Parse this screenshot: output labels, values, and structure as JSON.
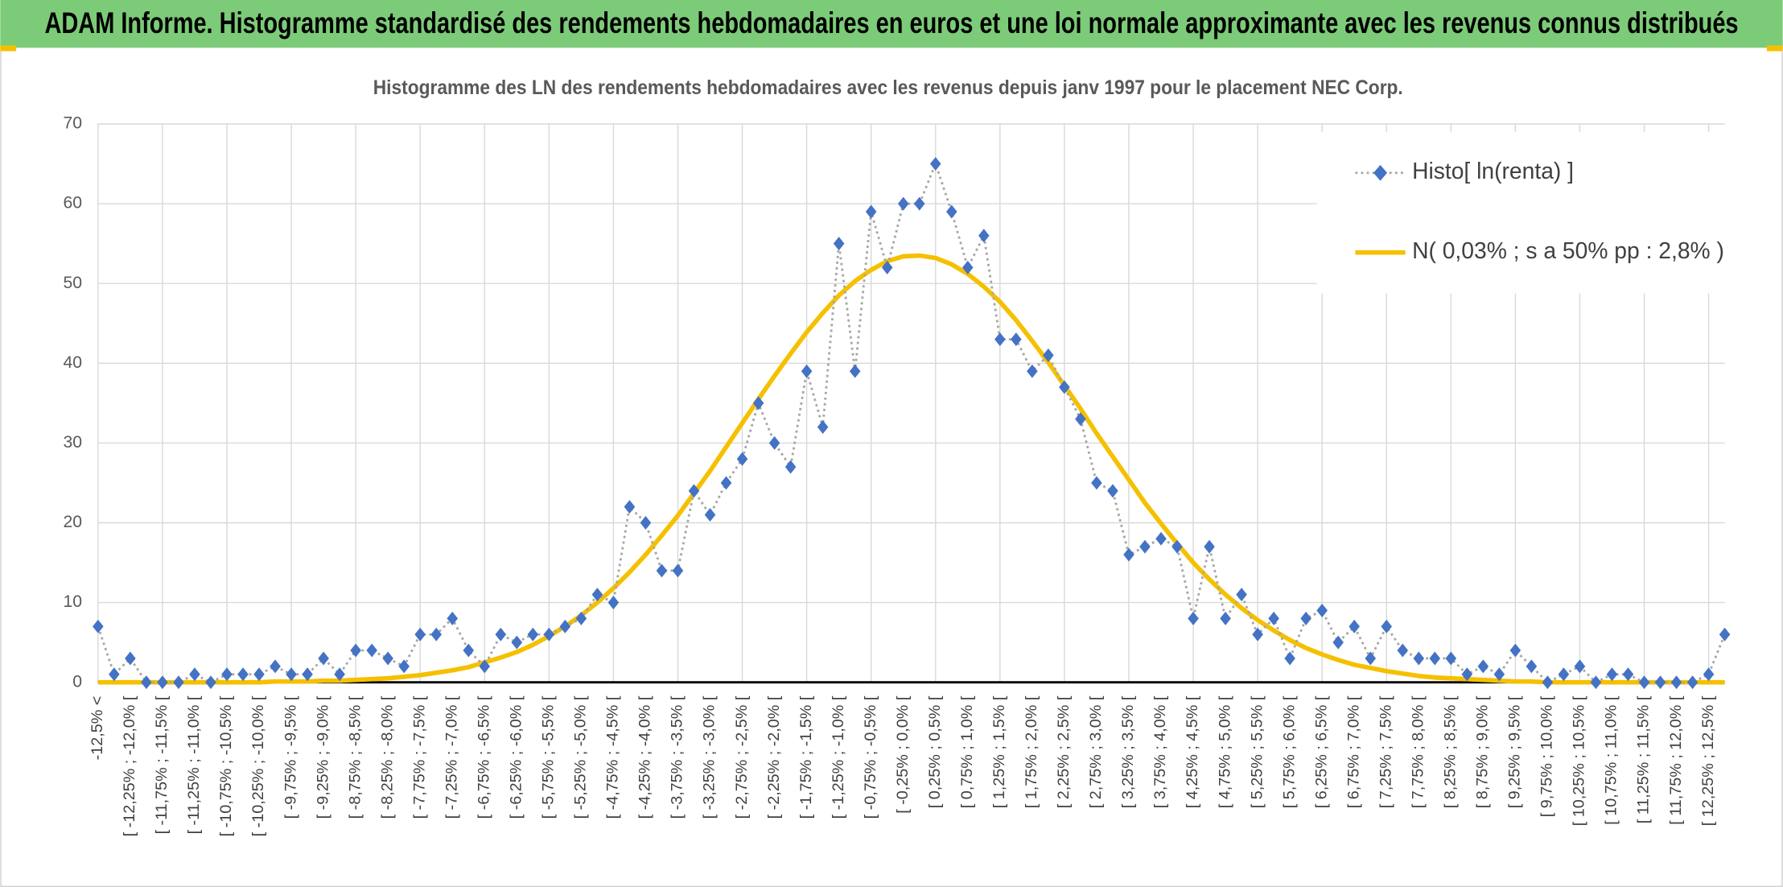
{
  "header": {
    "title": "ADAM Informe. Histogramme standardisé des rendements hebdomadaires en euros et une loi normale approximante avec les revenus connus distribués"
  },
  "chart_data": {
    "type": "line",
    "title": "Histogramme des LN des rendements hebdomadaires avec les revenus depuis janv 1997 pour le placement NEC Corp.",
    "categories": [
      "-12,5% <",
      null,
      "[ -12,25% ; -12,0% [",
      null,
      "[ -11,75% ; -11,5% [",
      null,
      "[ -11,25% ; -11,0% [",
      null,
      "[ -10,75% ; -10,5% [",
      null,
      "[ -10,25% ; -10,0% [",
      null,
      "[ -9,75% ; -9,5% [",
      null,
      "[ -9,25% ; -9,0% [",
      null,
      "[ -8,75% ; -8,5% [",
      null,
      "[ -8,25% ; -8,0% [",
      null,
      "[ -7,75% ; -7,5% [",
      null,
      "[ -7,25% ; -7,0% [",
      null,
      "[ -6,75% ; -6,5% [",
      null,
      "[ -6,25% ; -6,0% [",
      null,
      "[ -5,75% ; -5,5% [",
      null,
      "[ -5,25% ; -5,0% [",
      null,
      "[ -4,75% ; -4,5% [",
      null,
      "[ -4,25% ; -4,0% [",
      null,
      "[ -3,75% ; -3,5% [",
      null,
      "[ -3,25% ; -3,0% [",
      null,
      "[ -2,75% ; -2,5% [",
      null,
      "[ -2,25% ; -2,0% [",
      null,
      "[ -1,75% ; -1,5% [",
      null,
      "[ -1,25% ; -1,0% [",
      null,
      "[ -0,75% ; -0,5% [",
      null,
      "[ -0,25% ; 0,0% [",
      null,
      "[ 0,25% ; 0,5% [",
      null,
      "[ 0,75% ; 1,0% [",
      null,
      "[ 1,25% ; 1,5% [",
      null,
      "[ 1,75% ; 2,0% [",
      null,
      "[ 2,25% ; 2,5% [",
      null,
      "[ 2,75% ; 3,0% [",
      null,
      "[ 3,25% ; 3,5% [",
      null,
      "[ 3,75% ; 4,0% [",
      null,
      "[ 4,25% ; 4,5% [",
      null,
      "[ 4,75% ; 5,0% [",
      null,
      "[ 5,25% ; 5,5% [",
      null,
      "[ 5,75% ; 6,0% [",
      null,
      "[ 6,25% ; 6,5% [",
      null,
      "[ 6,75% ; 7,0% [",
      null,
      "[ 7,25% ; 7,5% [",
      null,
      "[ 7,75% ; 8,0% [",
      null,
      "[ 8,25% ; 8,5% [",
      null,
      "[ 8,75% ; 9,0% [",
      null,
      "[ 9,25% ; 9,5% [",
      null,
      "[ 9,75% ; 10,0% [",
      null,
      "[ 10,25% ; 10,5% [",
      null,
      "[ 10,75% ; 11,0% [",
      null,
      "[ 11,25% ; 11,5% [",
      null,
      "[ 11,75% ; 12,0% [",
      null,
      "[ 12,25% ; 12,5% [",
      null
    ],
    "series": [
      {
        "name": "Histo[ ln(renta) ]",
        "color": "#4472c4",
        "values": [
          7,
          1,
          3,
          0,
          0,
          0,
          1,
          0,
          1,
          1,
          1,
          2,
          1,
          1,
          3,
          1,
          4,
          4,
          3,
          2,
          6,
          6,
          8,
          4,
          2,
          6,
          5,
          6,
          6,
          7,
          8,
          11,
          10,
          22,
          20,
          14,
          14,
          24,
          21,
          25,
          28,
          35,
          30,
          27,
          39,
          32,
          55,
          39,
          59,
          52,
          60,
          60,
          65,
          59,
          52,
          56,
          43,
          43,
          39,
          41,
          37,
          33,
          25,
          24,
          16,
          17,
          18,
          17,
          8,
          17,
          8,
          11,
          6,
          8,
          3,
          8,
          9,
          5,
          7,
          3,
          7,
          4,
          3,
          3,
          3,
          1,
          2,
          1,
          4,
          2,
          0,
          1,
          2,
          0,
          1,
          1,
          0,
          0,
          0,
          0,
          1,
          6
        ]
      },
      {
        "name": "N( 0,03% ; s a 50% pp : 2,8% )",
        "color": "#f5c000",
        "values": [
          0,
          0,
          0,
          0,
          0,
          0,
          0,
          0,
          0,
          0,
          0,
          0.1,
          0.1,
          0.1,
          0.2,
          0.2,
          0.3,
          0.4,
          0.5,
          0.7,
          0.9,
          1.2,
          1.5,
          1.9,
          2.5,
          3.1,
          3.8,
          4.7,
          5.8,
          7.0,
          8.4,
          10.0,
          11.8,
          13.8,
          16.0,
          18.4,
          20.9,
          23.7,
          26.5,
          29.5,
          32.5,
          35.5,
          38.4,
          41.2,
          43.9,
          46.3,
          48.5,
          50.3,
          51.7,
          52.8,
          53.4,
          53.5,
          53.2,
          52.4,
          51.2,
          49.6,
          47.7,
          45.4,
          42.8,
          40.1,
          37.2,
          34.3,
          31.2,
          28.3,
          25.4,
          22.5,
          19.9,
          17.4,
          15.0,
          12.9,
          11.0,
          9.3,
          7.8,
          6.5,
          5.3,
          4.3,
          3.5,
          2.8,
          2.2,
          1.8,
          1.4,
          1.1,
          0.8,
          0.6,
          0.5,
          0.4,
          0.3,
          0.2,
          0.1,
          0.1,
          0,
          0,
          0,
          0,
          0,
          0,
          0,
          0,
          0,
          0,
          0,
          0
        ]
      }
    ],
    "ylim": [
      0,
      70
    ],
    "yticks": [
      0,
      10,
      20,
      30,
      40,
      50,
      60,
      70
    ],
    "grid": true,
    "legend": "top-right"
  }
}
